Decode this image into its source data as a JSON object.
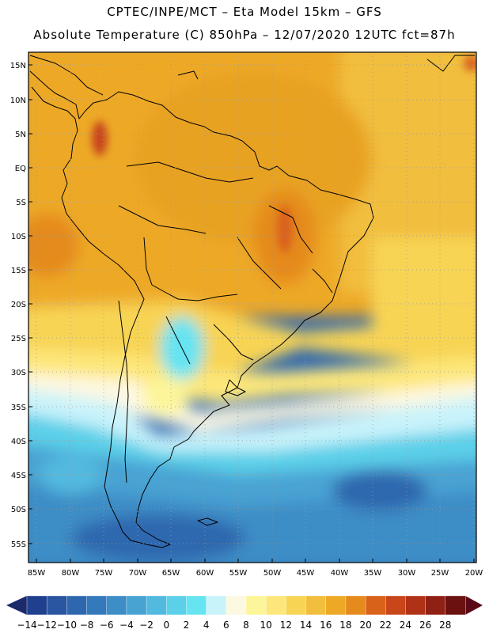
{
  "header": {
    "line1": "CPTEC/INPE/MCT –  Eta Model 15km – GFS",
    "line2": "Absolute Temperature (C) 850hPa – 12/07/2020 12UTC fct=87h"
  },
  "map": {
    "lat_labels": [
      "15N",
      "10N",
      "5N",
      "EQ",
      "5S",
      "10S",
      "15S",
      "20S",
      "25S",
      "30S",
      "35S",
      "40S",
      "45S",
      "50S",
      "55S"
    ],
    "lon_labels": [
      "85W",
      "80W",
      "75W",
      "70W",
      "65W",
      "60W",
      "55W",
      "50W",
      "45W",
      "40W",
      "35W",
      "30W",
      "25W",
      "20W"
    ]
  },
  "colorbar": {
    "labels": [
      "-14",
      "-12",
      "-10",
      "-8",
      "-6",
      "-4",
      "-2",
      "0",
      "2",
      "4",
      "6",
      "8",
      "10",
      "12",
      "14",
      "16",
      "18",
      "20",
      "22",
      "24",
      "26",
      "28"
    ],
    "colors": [
      "#1f3f8f",
      "#2a55a0",
      "#2f67ae",
      "#3479bb",
      "#3d8dc6",
      "#48a3d3",
      "#52b9df",
      "#5cd0e9",
      "#66e4f2",
      "#c9f3fb",
      "#fdf8e1",
      "#fdf59a",
      "#fde77a",
      "#f8d455",
      "#f2be3e",
      "#eda926",
      "#e58a1c",
      "#d9621a",
      "#c8461a",
      "#b03216",
      "#8f2014",
      "#6b1210"
    ],
    "arrow_left_color": "#1a2a6b",
    "arrow_right_color": "#5a0818"
  }
}
